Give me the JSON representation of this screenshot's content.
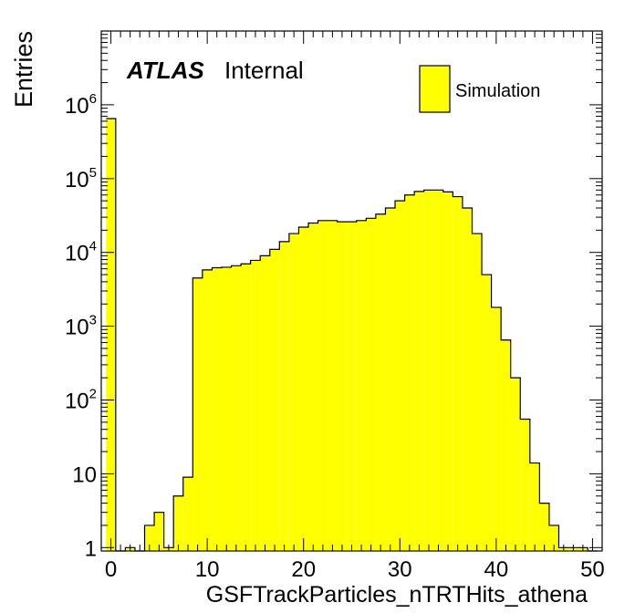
{
  "chart_data": {
    "type": "bar",
    "style": "histogram",
    "xlabel": "GSFTrackParticles_nTRTHits_athena",
    "ylabel": "Entries",
    "xlim": [
      -1,
      51
    ],
    "ylim": [
      0.9,
      10000000
    ],
    "yscale": "log",
    "x_ticks": [
      "0",
      "10",
      "20",
      "30",
      "40",
      "50"
    ],
    "y_ticks": [
      {
        "base": "1",
        "exp": ""
      },
      {
        "base": "10",
        "exp": ""
      },
      {
        "base": "10",
        "exp": "2"
      },
      {
        "base": "10",
        "exp": "3"
      },
      {
        "base": "10",
        "exp": "4"
      },
      {
        "base": "10",
        "exp": "5"
      },
      {
        "base": "10",
        "exp": "6"
      }
    ],
    "bin_width": 1,
    "bin_edges_start": -0.5,
    "fill_color": "#ffff00",
    "line_color": "#000000",
    "values": [
      650000,
      0,
      1,
      0,
      2,
      3,
      1,
      5,
      9,
      4500,
      5800,
      6200,
      6300,
      6600,
      7000,
      7800,
      9000,
      11000,
      14000,
      18000,
      22000,
      25000,
      27000,
      27000,
      26000,
      26000,
      27000,
      29000,
      33000,
      40000,
      50000,
      60000,
      67000,
      70000,
      70000,
      66000,
      57000,
      40000,
      18000,
      5000,
      1800,
      650,
      200,
      55,
      14,
      4,
      2,
      1,
      1,
      1,
      0
    ],
    "legend": {
      "label": "Simulation",
      "position": "top-right"
    },
    "annotation": {
      "bold": "ATLAS",
      "normal": "Internal"
    }
  }
}
